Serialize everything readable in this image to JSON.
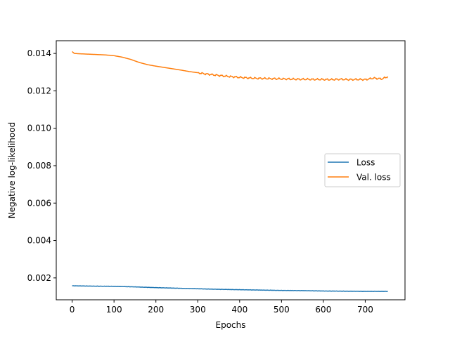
{
  "chart_data": {
    "type": "line",
    "title": "",
    "xlabel": "Epochs",
    "ylabel": "Negative log-likelihood",
    "xlim": [
      -38,
      795
    ],
    "ylim": [
      0.00083,
      0.01468
    ],
    "xticks": [
      0,
      100,
      200,
      300,
      400,
      500,
      600,
      700
    ],
    "xtick_labels": [
      "0",
      "100",
      "200",
      "300",
      "400",
      "500",
      "600",
      "700"
    ],
    "yticks": [
      0.002,
      0.004,
      0.006,
      0.008,
      0.01,
      0.012,
      0.014
    ],
    "ytick_labels": [
      "0.002",
      "0.004",
      "0.006",
      "0.008",
      "0.010",
      "0.012",
      "0.014"
    ],
    "grid": false,
    "legend_position": "center-right",
    "series": [
      {
        "name": "Loss",
        "color": "#1f77b4",
        "x": [
          0,
          50,
          100,
          150,
          200,
          250,
          300,
          350,
          400,
          450,
          500,
          550,
          600,
          650,
          700,
          755
        ],
        "y": [
          0.00158,
          0.00156,
          0.00155,
          0.00152,
          0.00148,
          0.00145,
          0.00142,
          0.00139,
          0.00137,
          0.00135,
          0.00133,
          0.00132,
          0.0013,
          0.00129,
          0.00128,
          0.00128
        ]
      },
      {
        "name": "Val. loss",
        "color": "#ff7f0e",
        "x": [
          0,
          5,
          20,
          40,
          60,
          80,
          100,
          120,
          140,
          160,
          180,
          200,
          220,
          240,
          260,
          280,
          300,
          320,
          340,
          360,
          380,
          400,
          420,
          440,
          460,
          480,
          500,
          520,
          540,
          560,
          580,
          600,
          620,
          640,
          660,
          680,
          700,
          720,
          740,
          755
        ],
        "y": [
          0.0141,
          0.014,
          0.01398,
          0.01396,
          0.01394,
          0.01392,
          0.01388,
          0.0138,
          0.01368,
          0.01352,
          0.0134,
          0.01332,
          0.01325,
          0.01318,
          0.01311,
          0.01303,
          0.01297,
          0.0129,
          0.01285,
          0.0128,
          0.01276,
          0.01272,
          0.01269,
          0.01267,
          0.01266,
          0.01265,
          0.01264,
          0.01263,
          0.01262,
          0.01262,
          0.01261,
          0.01261,
          0.0126,
          0.01262,
          0.0126,
          0.01261,
          0.0126,
          0.01268,
          0.01264,
          0.01277
        ]
      }
    ]
  }
}
